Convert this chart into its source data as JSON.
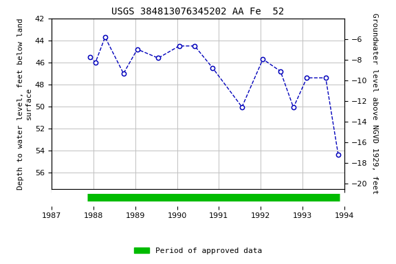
{
  "title": "USGS 384813076345202 AA Fe  52",
  "ylabel_left": "Depth to water level, feet below land\nsurface",
  "ylabel_right": "Groundwater level above NGVD 1929, feet",
  "xlim": [
    1987,
    1994
  ],
  "ylim_left": [
    57.5,
    42
  ],
  "ylim_right": [
    -20.5,
    -4
  ],
  "yticks_left": [
    42,
    44,
    46,
    48,
    50,
    52,
    54,
    56
  ],
  "yticks_right": [
    -6,
    -8,
    -10,
    -12,
    -14,
    -16,
    -18,
    -20
  ],
  "xticks": [
    1987,
    1988,
    1989,
    1990,
    1991,
    1992,
    1993,
    1994
  ],
  "x_data": [
    1987.92,
    1988.05,
    1988.28,
    1988.72,
    1989.05,
    1989.55,
    1990.05,
    1990.42,
    1990.85,
    1991.55,
    1992.05,
    1992.47,
    1992.78,
    1993.1,
    1993.55,
    1993.85
  ],
  "y_data": [
    45.5,
    46.0,
    43.7,
    47.0,
    44.8,
    45.6,
    44.5,
    44.5,
    46.5,
    50.05,
    45.7,
    46.8,
    50.1,
    47.4,
    47.4,
    54.4
  ],
  "line_color": "#0000bb",
  "marker_color": "#0000bb",
  "marker_face": "white",
  "green_bar_xstart": 1987.85,
  "green_bar_xend": 1993.88,
  "green_bar_color": "#00bb00",
  "legend_label": "Period of approved data",
  "plot_bg_color": "#ffffff",
  "fig_bg_color": "#ffffff",
  "grid_color": "#c0c0c0",
  "title_fontsize": 10,
  "label_fontsize": 8,
  "tick_fontsize": 8
}
